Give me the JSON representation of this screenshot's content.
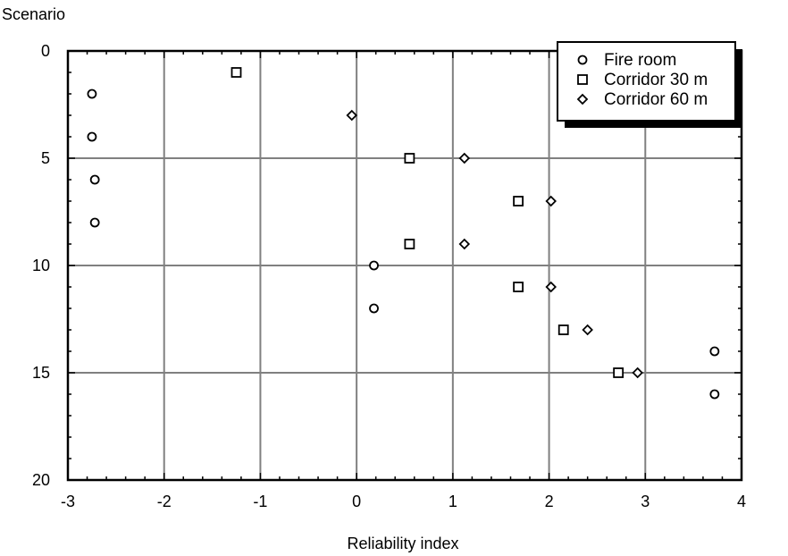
{
  "chart_data": {
    "type": "scatter",
    "xlabel": "Reliability index",
    "ylabel": "Scenario",
    "xlim": [
      -3,
      4
    ],
    "ylim": [
      0,
      20
    ],
    "y_inverted": true,
    "xticks": [
      -3,
      -2,
      -1,
      0,
      1,
      2,
      3,
      4
    ],
    "yticks": [
      0,
      5,
      10,
      15,
      20
    ],
    "grid": true,
    "legend_position": "top-right",
    "series": [
      {
        "name": "Fire room",
        "marker": "circle",
        "points": [
          {
            "x": -2.75,
            "y": 2
          },
          {
            "x": -2.75,
            "y": 4
          },
          {
            "x": -2.72,
            "y": 6
          },
          {
            "x": -2.72,
            "y": 8
          },
          {
            "x": 0.18,
            "y": 10
          },
          {
            "x": 0.18,
            "y": 12
          },
          {
            "x": 3.72,
            "y": 14
          },
          {
            "x": 3.72,
            "y": 16
          }
        ]
      },
      {
        "name": "Corridor 30 m",
        "marker": "square",
        "points": [
          {
            "x": -1.25,
            "y": 1
          },
          {
            "x": 0.55,
            "y": 5
          },
          {
            "x": 1.68,
            "y": 7
          },
          {
            "x": 0.55,
            "y": 9
          },
          {
            "x": 1.68,
            "y": 11
          },
          {
            "x": 2.15,
            "y": 13
          },
          {
            "x": 2.72,
            "y": 15
          }
        ]
      },
      {
        "name": "Corridor 60 m",
        "marker": "diamond",
        "points": [
          {
            "x": -0.05,
            "y": 3
          },
          {
            "x": 1.12,
            "y": 5
          },
          {
            "x": 2.02,
            "y": 7
          },
          {
            "x": 1.12,
            "y": 9
          },
          {
            "x": 2.02,
            "y": 11
          },
          {
            "x": 2.4,
            "y": 13
          },
          {
            "x": 2.92,
            "y": 15
          }
        ]
      }
    ]
  }
}
